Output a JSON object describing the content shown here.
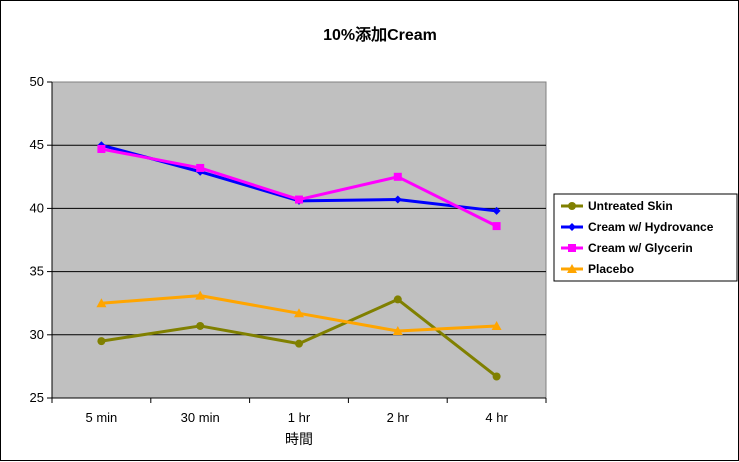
{
  "chart_data": {
    "type": "line",
    "title": "10%添加Cream",
    "xlabel": "時間",
    "ylabel": "",
    "categories": [
      "5 min",
      "30 min",
      "1 hr",
      "2 hr",
      "4 hr"
    ],
    "ylim": [
      25,
      50
    ],
    "yticks": [
      25,
      30,
      35,
      40,
      45,
      50
    ],
    "grid": true,
    "legend_position": "right",
    "plot_background": "#c0c0c0",
    "series": [
      {
        "name": "Untreated Skin",
        "color": "#808000",
        "marker": "circle",
        "values": [
          29.5,
          30.7,
          29.3,
          32.8,
          26.7
        ]
      },
      {
        "name": "Cream w/ Hydrovance",
        "color": "#0000ff",
        "marker": "diamond",
        "values": [
          45.0,
          42.9,
          40.6,
          40.7,
          39.8
        ]
      },
      {
        "name": "Cream w/ Glycerin",
        "color": "#ff00ff",
        "marker": "square",
        "values": [
          44.7,
          43.2,
          40.7,
          42.5,
          38.6
        ]
      },
      {
        "name": "Placebo",
        "color": "#ffa500",
        "marker": "triangle",
        "values": [
          32.5,
          33.1,
          31.7,
          30.3,
          30.7
        ]
      }
    ]
  }
}
